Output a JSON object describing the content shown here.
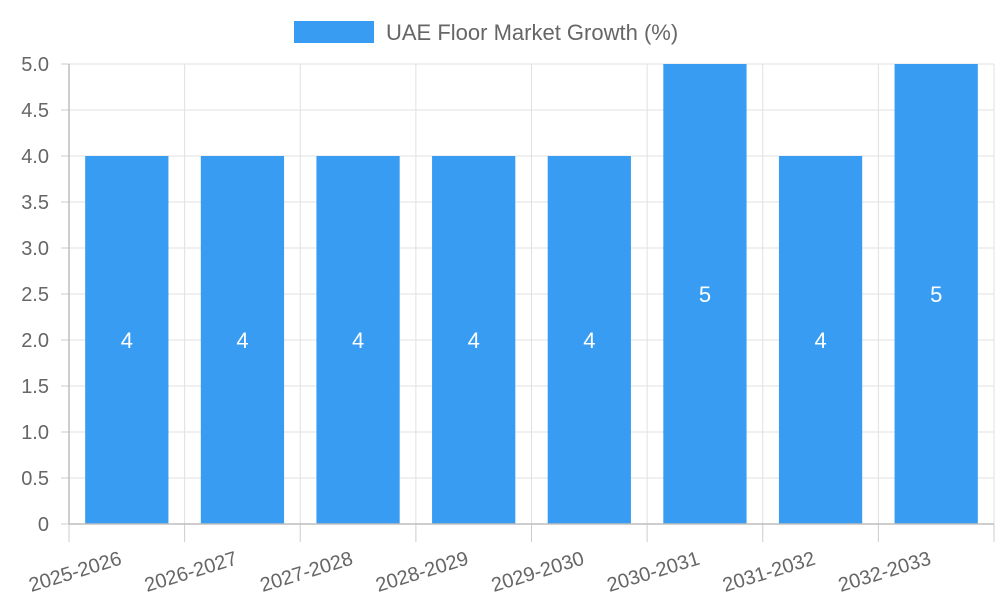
{
  "chart_data": {
    "type": "bar",
    "title": "",
    "xlabel": "",
    "ylabel": "",
    "categories": [
      "2025-2026",
      "2026-2027",
      "2027-2028",
      "2028-2029",
      "2029-2030",
      "2030-2031",
      "2031-2032",
      "2032-2033"
    ],
    "series": [
      {
        "name": "UAE Floor Market Growth (%)",
        "values": [
          4,
          4,
          4,
          4,
          4,
          5,
          4,
          5
        ],
        "color": "#379CF2"
      }
    ],
    "ylim": [
      0,
      5
    ],
    "yticks": [
      "0",
      "0.5",
      "1.0",
      "1.5",
      "2.0",
      "2.5",
      "3.0",
      "3.5",
      "4.0",
      "4.5",
      "5.0"
    ],
    "grid": true,
    "legend": "top-center",
    "data_labels": [
      "4",
      "4",
      "4",
      "4",
      "4",
      "5",
      "4",
      "5"
    ]
  }
}
